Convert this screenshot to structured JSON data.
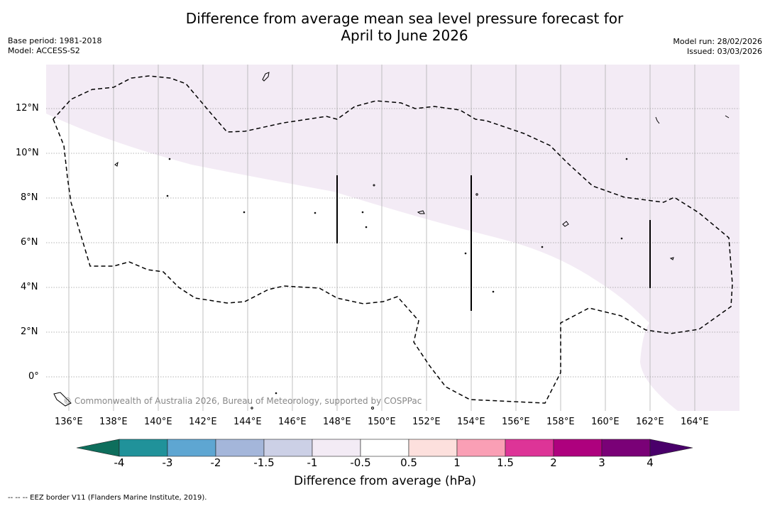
{
  "header": {
    "title_line1": "Difference from average mean sea level pressure forecast for",
    "title_line2": "April to June 2026",
    "base_period": "Base period: 1981-2018",
    "model": "Model: ACCESS-S2",
    "model_run": "Model run: 28/02/2026",
    "issued": "Issued: 03/03/2026"
  },
  "map": {
    "lon_ticks": [
      "136°E",
      "138°E",
      "140°E",
      "142°E",
      "144°E",
      "146°E",
      "148°E",
      "150°E",
      "152°E",
      "154°E",
      "156°E",
      "158°E",
      "160°E",
      "162°E",
      "164°E"
    ],
    "lat_ticks": [
      "12°N",
      "10°N",
      "8°N",
      "6°N",
      "4°N",
      "2°N",
      "0°"
    ],
    "copyright": "© Commonwealth of Australia 2026, Bureau of Meteorology, supported by COSPPac",
    "shaded_category": "-0.5 to -1 hPa",
    "colors": {
      "light_lilac": "#f3ebf5",
      "eez_line": "#000000",
      "grid": "#b0b0b0"
    }
  },
  "colorbar": {
    "tick_labels": [
      "-4",
      "-3",
      "-2",
      "-1.5",
      "-1",
      "-0.5",
      "0.5",
      "1",
      "1.5",
      "2",
      "3",
      "4"
    ],
    "colors": [
      "#0e6e5c",
      "#20929a",
      "#5ea6d2",
      "#a4b6da",
      "#ccd0e6",
      "#f3ebf5",
      "#ffffff",
      "#fde0dd",
      "#fa9fb5",
      "#dd3497",
      "#ae017e",
      "#7a0177",
      "#49006a"
    ],
    "label": "Difference from average (hPa)"
  },
  "footer": {
    "eez_note": "-- -- -- EEZ border V11 (Flanders Marine Institute, 2019)."
  }
}
